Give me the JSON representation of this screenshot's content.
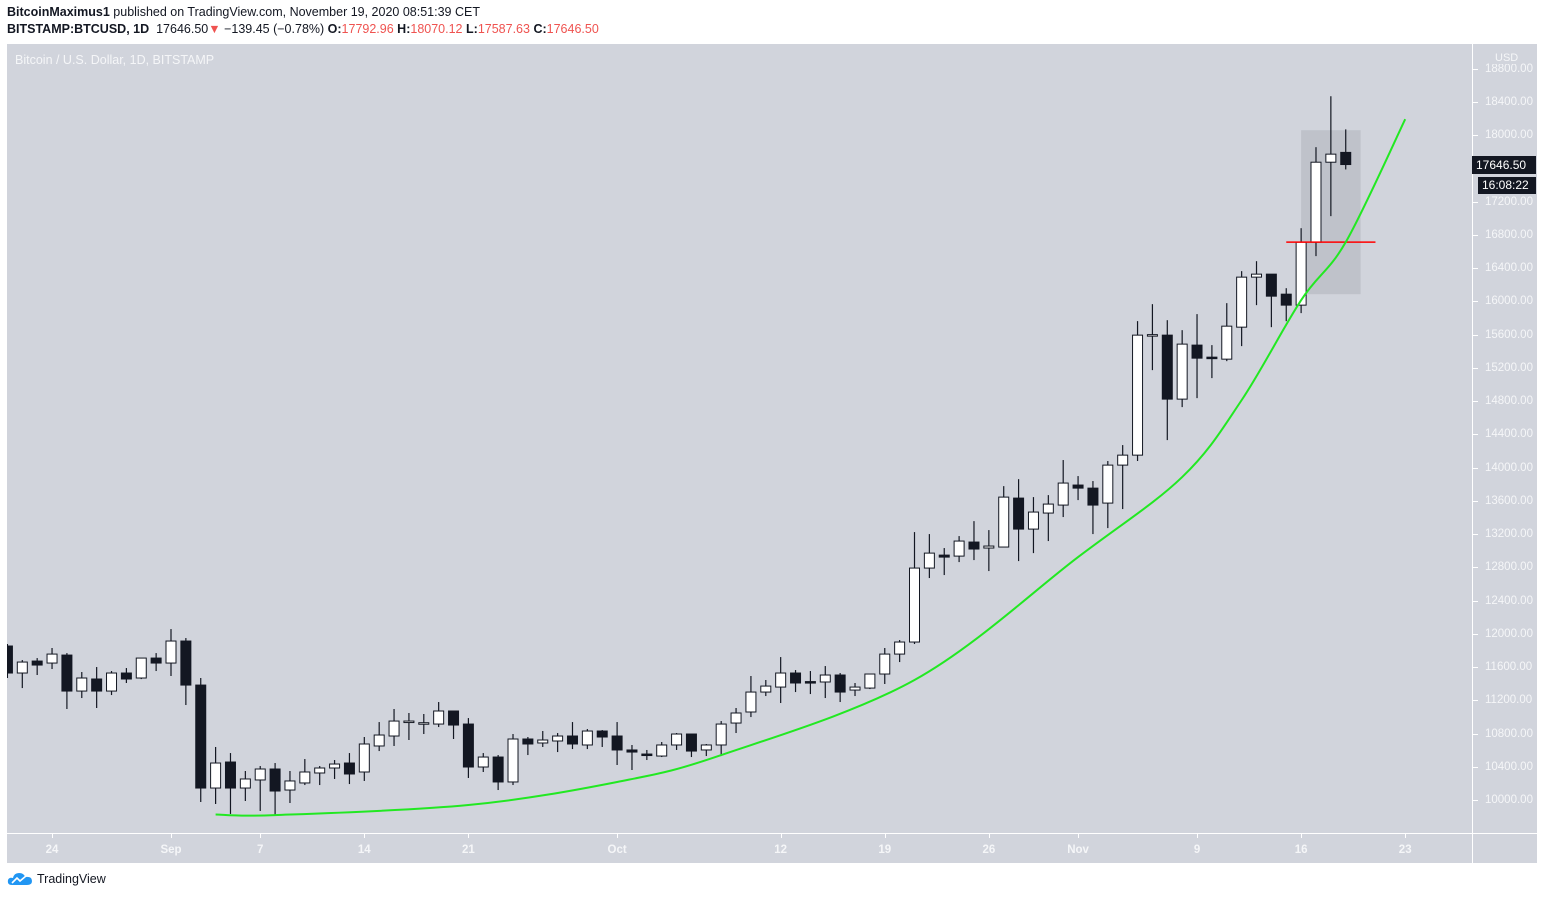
{
  "header": {
    "author": "BitcoinMaximus1",
    "published_text": "published on TradingView.com, November 19, 2020 08:51:39 CET",
    "symbol": "BITSTAMP:BTCUSD, 1D",
    "last": "17646.50",
    "change": "−139.45 (−0.78%)",
    "o_label": "O:",
    "o_value": "17792.96",
    "h_label": "H:",
    "h_value": "18070.12",
    "l_label": "L:",
    "l_value": "17587.63",
    "c_label": "C:",
    "c_value": "17646.50"
  },
  "footer": {
    "brand": "TradingView"
  },
  "colors": {
    "background": "#d1d4dc",
    "up": "#ffffff",
    "down": "#131722",
    "curve": "#22e822",
    "level": "#ff0000",
    "change_down": "#ef5350"
  },
  "chart_data": {
    "type": "candlestick",
    "title": "Bitcoin / U.S. Dollar, 1D, BITSTAMP",
    "currency": "USD",
    "current_price_label": "17646.50",
    "countdown_label": "16:08:22",
    "ylim": [
      9600,
      18900
    ],
    "y_ticks": [
      "10000.00",
      "10400.00",
      "10800.00",
      "11200.00",
      "11600.00",
      "12000.00",
      "12400.00",
      "12800.00",
      "13200.00",
      "13600.00",
      "14000.00",
      "14400.00",
      "14800.00",
      "15200.00",
      "15600.00",
      "16000.00",
      "16400.00",
      "16800.00",
      "17200.00",
      "18000.00",
      "18400.00",
      "18800.00"
    ],
    "x_ticks": [
      {
        "label": "24",
        "date": "2020-08-24"
      },
      {
        "label": "Sep",
        "date": "2020-09-01"
      },
      {
        "label": "7",
        "date": "2020-09-07"
      },
      {
        "label": "14",
        "date": "2020-09-14"
      },
      {
        "label": "21",
        "date": "2020-09-21"
      },
      {
        "label": "Oct",
        "date": "2020-10-01"
      },
      {
        "label": "12",
        "date": "2020-10-12"
      },
      {
        "label": "19",
        "date": "2020-10-19"
      },
      {
        "label": "26",
        "date": "2020-10-26"
      },
      {
        "label": "Nov",
        "date": "2020-11-01"
      },
      {
        "label": "9",
        "date": "2020-11-09"
      },
      {
        "label": "16",
        "date": "2020-11-16"
      },
      {
        "label": "23",
        "date": "2020-11-23"
      }
    ],
    "candle_fields": [
      "date",
      "open",
      "high",
      "low",
      "close"
    ],
    "candles": [
      [
        "2020-08-21",
        11853,
        11877,
        11468,
        11528
      ],
      [
        "2020-08-22",
        11528,
        11684,
        11347,
        11660
      ],
      [
        "2020-08-23",
        11672,
        11708,
        11504,
        11624
      ],
      [
        "2020-08-24",
        11648,
        11829,
        11576,
        11756
      ],
      [
        "2020-08-25",
        11744,
        11768,
        11095,
        11311
      ],
      [
        "2020-08-26",
        11311,
        11540,
        11227,
        11468
      ],
      [
        "2020-08-27",
        11456,
        11600,
        11107,
        11311
      ],
      [
        "2020-08-28",
        11311,
        11552,
        11263,
        11528
      ],
      [
        "2020-08-29",
        11528,
        11588,
        11408,
        11456
      ],
      [
        "2020-08-30",
        11468,
        11708,
        11455,
        11708
      ],
      [
        "2020-08-31",
        11708,
        11768,
        11552,
        11648
      ],
      [
        "2020-09-01",
        11648,
        12057,
        11492,
        11913
      ],
      [
        "2020-09-02",
        11913,
        11949,
        11143,
        11383
      ],
      [
        "2020-09-03",
        11383,
        11468,
        9976,
        10144
      ],
      [
        "2020-09-04",
        10144,
        10638,
        9952,
        10445
      ],
      [
        "2020-09-05",
        10457,
        10565,
        9832,
        10144
      ],
      [
        "2020-09-06",
        10144,
        10349,
        9988,
        10253
      ],
      [
        "2020-09-07",
        10241,
        10409,
        9868,
        10373
      ],
      [
        "2020-09-08",
        10373,
        10445,
        9820,
        10108
      ],
      [
        "2020-09-09",
        10120,
        10349,
        9964,
        10229
      ],
      [
        "2020-09-10",
        10205,
        10493,
        10180,
        10337
      ],
      [
        "2020-09-11",
        10325,
        10409,
        10180,
        10385
      ],
      [
        "2020-09-12",
        10385,
        10481,
        10253,
        10433
      ],
      [
        "2020-09-13",
        10445,
        10565,
        10192,
        10313
      ],
      [
        "2020-09-14",
        10337,
        10758,
        10229,
        10674
      ],
      [
        "2020-09-15",
        10650,
        10938,
        10589,
        10782
      ],
      [
        "2020-09-16",
        10770,
        11095,
        10650,
        10950
      ],
      [
        "2020-09-17",
        10938,
        11047,
        10722,
        10950
      ],
      [
        "2020-09-18",
        10926,
        11035,
        10794,
        10930
      ],
      [
        "2020-09-19",
        10914,
        11179,
        10878,
        11071
      ],
      [
        "2020-09-20",
        11071,
        11071,
        10734,
        10902
      ],
      [
        "2020-09-21",
        10914,
        10986,
        10265,
        10397
      ],
      [
        "2020-09-22",
        10397,
        10565,
        10337,
        10517
      ],
      [
        "2020-09-23",
        10517,
        10541,
        10120,
        10217
      ],
      [
        "2020-09-24",
        10217,
        10794,
        10180,
        10734
      ],
      [
        "2020-09-25",
        10734,
        10758,
        10541,
        10674
      ],
      [
        "2020-09-26",
        10686,
        10830,
        10638,
        10722
      ],
      [
        "2020-09-27",
        10710,
        10806,
        10577,
        10770
      ],
      [
        "2020-09-28",
        10770,
        10938,
        10613,
        10674
      ],
      [
        "2020-09-29",
        10662,
        10854,
        10613,
        10830
      ],
      [
        "2020-09-30",
        10830,
        10842,
        10638,
        10758
      ],
      [
        "2020-10-01",
        10770,
        10938,
        10421,
        10602
      ],
      [
        "2020-10-02",
        10602,
        10662,
        10361,
        10577
      ],
      [
        "2020-10-03",
        10553,
        10602,
        10481,
        10541
      ],
      [
        "2020-10-04",
        10529,
        10698,
        10517,
        10662
      ],
      [
        "2020-10-05",
        10662,
        10806,
        10602,
        10794
      ],
      [
        "2020-10-06",
        10794,
        10794,
        10517,
        10589
      ],
      [
        "2020-10-07",
        10602,
        10674,
        10529,
        10662
      ],
      [
        "2020-10-08",
        10662,
        10950,
        10529,
        10914
      ],
      [
        "2020-10-09",
        10926,
        11107,
        10806,
        11047
      ],
      [
        "2020-10-10",
        11059,
        11492,
        10998,
        11299
      ],
      [
        "2020-10-11",
        11299,
        11444,
        11251,
        11371
      ],
      [
        "2020-10-12",
        11359,
        11720,
        11167,
        11528
      ],
      [
        "2020-10-13",
        11528,
        11564,
        11299,
        11408
      ],
      [
        "2020-10-14",
        11425,
        11552,
        11275,
        11415
      ],
      [
        "2020-10-15",
        11420,
        11612,
        11227,
        11504
      ],
      [
        "2020-10-16",
        11504,
        11528,
        11179,
        11299
      ],
      [
        "2020-10-17",
        11323,
        11408,
        11251,
        11359
      ],
      [
        "2020-10-18",
        11347,
        11516,
        11335,
        11516
      ],
      [
        "2020-10-19",
        11516,
        11829,
        11396,
        11756
      ],
      [
        "2020-10-20",
        11756,
        11925,
        11660,
        11901
      ],
      [
        "2020-10-21",
        11901,
        13224,
        11877,
        12791
      ],
      [
        "2020-10-22",
        12791,
        13200,
        12671,
        12971
      ],
      [
        "2020-10-23",
        12947,
        13032,
        12707,
        12923
      ],
      [
        "2020-10-24",
        12935,
        13176,
        12863,
        13116
      ],
      [
        "2020-10-25",
        13104,
        13356,
        12887,
        13020
      ],
      [
        "2020-10-26",
        13032,
        13248,
        12755,
        13056
      ],
      [
        "2020-10-27",
        13044,
        13777,
        13044,
        13645
      ],
      [
        "2020-10-28",
        13633,
        13861,
        12875,
        13260
      ],
      [
        "2020-10-29",
        13260,
        13645,
        12971,
        13465
      ],
      [
        "2020-10-30",
        13453,
        13669,
        13116,
        13561
      ],
      [
        "2020-10-31",
        13549,
        14091,
        13405,
        13814
      ],
      [
        "2020-11-01",
        13790,
        13898,
        13609,
        13753
      ],
      [
        "2020-11-02",
        13753,
        13838,
        13200,
        13549
      ],
      [
        "2020-11-03",
        13573,
        14079,
        13272,
        14030
      ],
      [
        "2020-11-04",
        14030,
        14271,
        13501,
        14150
      ],
      [
        "2020-11-05",
        14150,
        15762,
        14079,
        15594
      ],
      [
        "2020-11-06",
        15590,
        15967,
        15173,
        15600
      ],
      [
        "2020-11-07",
        15594,
        15774,
        14331,
        14824
      ],
      [
        "2020-11-08",
        14824,
        15654,
        14728,
        15486
      ],
      [
        "2020-11-09",
        15474,
        15847,
        14836,
        15317
      ],
      [
        "2020-11-10",
        15329,
        15474,
        15077,
        15317
      ],
      [
        "2020-11-11",
        15305,
        15979,
        15281,
        15702
      ],
      [
        "2020-11-12",
        15690,
        16364,
        15462,
        16292
      ],
      [
        "2020-11-13",
        16292,
        16484,
        15955,
        16328
      ],
      [
        "2020-11-14",
        16328,
        16328,
        15690,
        16063
      ],
      [
        "2020-11-15",
        16087,
        16159,
        15762,
        15955
      ],
      [
        "2020-11-16",
        15955,
        16881,
        15859,
        16713
      ],
      [
        "2020-11-17",
        16713,
        17856,
        16545,
        17675
      ],
      [
        "2020-11-18",
        17675,
        18469,
        17026,
        17772
      ],
      [
        "2020-11-19",
        17793,
        18070,
        17588,
        17647
      ]
    ],
    "curve": [
      [
        "2020-09-04",
        9825
      ],
      [
        "2020-09-08",
        9818
      ],
      [
        "2020-09-21",
        9940
      ],
      [
        "2020-10-01",
        10217
      ],
      [
        "2020-10-08",
        10541
      ],
      [
        "2020-10-21",
        11444
      ],
      [
        "2020-11-01",
        12923
      ],
      [
        "2020-11-08",
        13886
      ],
      [
        "2020-11-12",
        14812
      ],
      [
        "2020-11-16",
        16015
      ],
      [
        "2020-11-19",
        16713
      ],
      [
        "2020-11-23",
        18192
      ]
    ],
    "level_line": {
      "price": 16713,
      "from": "2020-11-15",
      "to": "2020-11-21"
    },
    "highlight_box": {
      "from": "2020-11-16",
      "to": "2020-11-20",
      "top": 18060,
      "bottom": 16087
    }
  }
}
